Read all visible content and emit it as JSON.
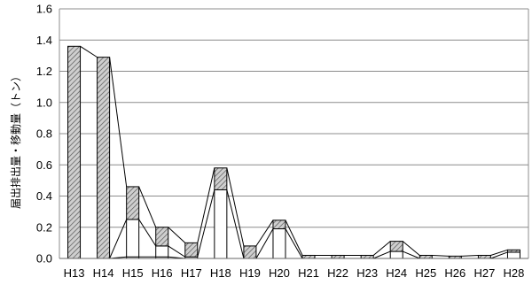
{
  "chart_data": {
    "type": "bar",
    "stacked": true,
    "connector_lines": true,
    "title": "",
    "xlabel": "",
    "ylabel": "届出排出量・移動量（トン）",
    "categories": [
      "H13",
      "H14",
      "H15",
      "H16",
      "H17",
      "H18",
      "H19",
      "H20",
      "H21",
      "H22",
      "H23",
      "H24",
      "H25",
      "H26",
      "H27",
      "H28"
    ],
    "ylim": [
      0,
      1.6
    ],
    "yticks": [
      "0.0",
      "0.2",
      "0.4",
      "0.6",
      "0.8",
      "1.0",
      "1.2",
      "1.4",
      "1.6"
    ],
    "grid": true,
    "legend": "none",
    "series": [
      {
        "fill": "#ffffff",
        "pattern": "none",
        "values": [
          0.0,
          0.0,
          0.01,
          0.01,
          0.0,
          0.0,
          0.0,
          0.0,
          0.0,
          0.0,
          0.0,
          0.0,
          0.0,
          0.0,
          0.0,
          0.0
        ]
      },
      {
        "fill": "#ffffff",
        "pattern": "none",
        "values": [
          0.0,
          0.0,
          0.24,
          0.07,
          0.01,
          0.44,
          0.0,
          0.19,
          0.0,
          0.0,
          0.0,
          0.045,
          0.0,
          0.0,
          0.0,
          0.04
        ]
      },
      {
        "fill": "#c8c8c8",
        "pattern": "diagonal-hatch",
        "values": [
          1.36,
          1.29,
          0.21,
          0.12,
          0.09,
          0.14,
          0.08,
          0.055,
          0.02,
          0.02,
          0.02,
          0.065,
          0.02,
          0.015,
          0.02,
          0.015
        ]
      }
    ]
  }
}
